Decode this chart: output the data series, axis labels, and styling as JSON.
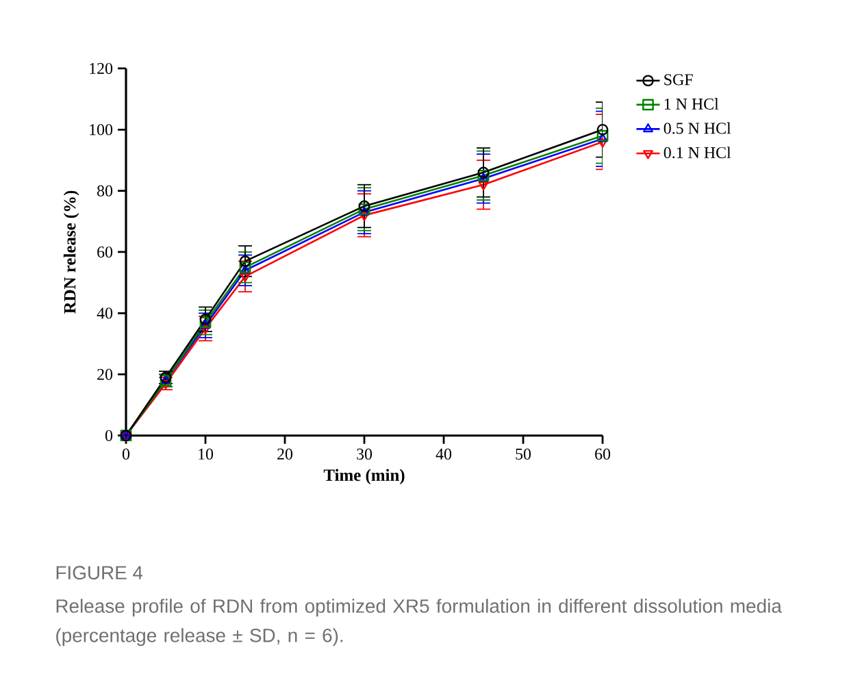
{
  "chart_data": {
    "type": "line",
    "title": "FIGURE 4",
    "annotations": [
      "Release profile of RDN from optimized XR5 formulation in different dissolution media (percentage release ± SD, n = 6)."
    ],
    "xlabel": "Time (min)",
    "ylabel": "RDN release (%)",
    "x": [
      0,
      5,
      10,
      15,
      30,
      45,
      60
    ],
    "series": [
      {
        "name": "SGF",
        "color": "#000000",
        "marker": "circle",
        "values": [
          0,
          19,
          38,
          57,
          75,
          86,
          100
        ],
        "errors": [
          0,
          2,
          4,
          5,
          7,
          8,
          9
        ]
      },
      {
        "name": "1 N HCl",
        "color": "#008000",
        "marker": "square",
        "values": [
          0,
          18,
          37,
          55,
          74,
          85,
          98
        ],
        "errors": [
          0,
          2,
          4,
          5,
          7,
          8,
          9
        ]
      },
      {
        "name": "0.5 N HCl",
        "color": "#0000ff",
        "marker": "triangle",
        "values": [
          0,
          18,
          36,
          54,
          73,
          84,
          97
        ],
        "errors": [
          0,
          2,
          4,
          5,
          7,
          8,
          9
        ]
      },
      {
        "name": "0.1 N HCl",
        "color": "#ff0000",
        "marker": "triangle down",
        "values": [
          0,
          17,
          35,
          52,
          72,
          82,
          96
        ],
        "errors": [
          0,
          2,
          4,
          5,
          7,
          8,
          9
        ]
      }
    ],
    "xlim": [
      0,
      60
    ],
    "xticks": [
      0,
      10,
      20,
      30,
      40,
      50,
      60
    ],
    "ylim": [
      0,
      120
    ],
    "yticks": [
      0,
      20,
      40,
      60,
      80,
      100,
      120
    ],
    "grid": false,
    "legend": "top right",
    "line_style": "solid"
  }
}
